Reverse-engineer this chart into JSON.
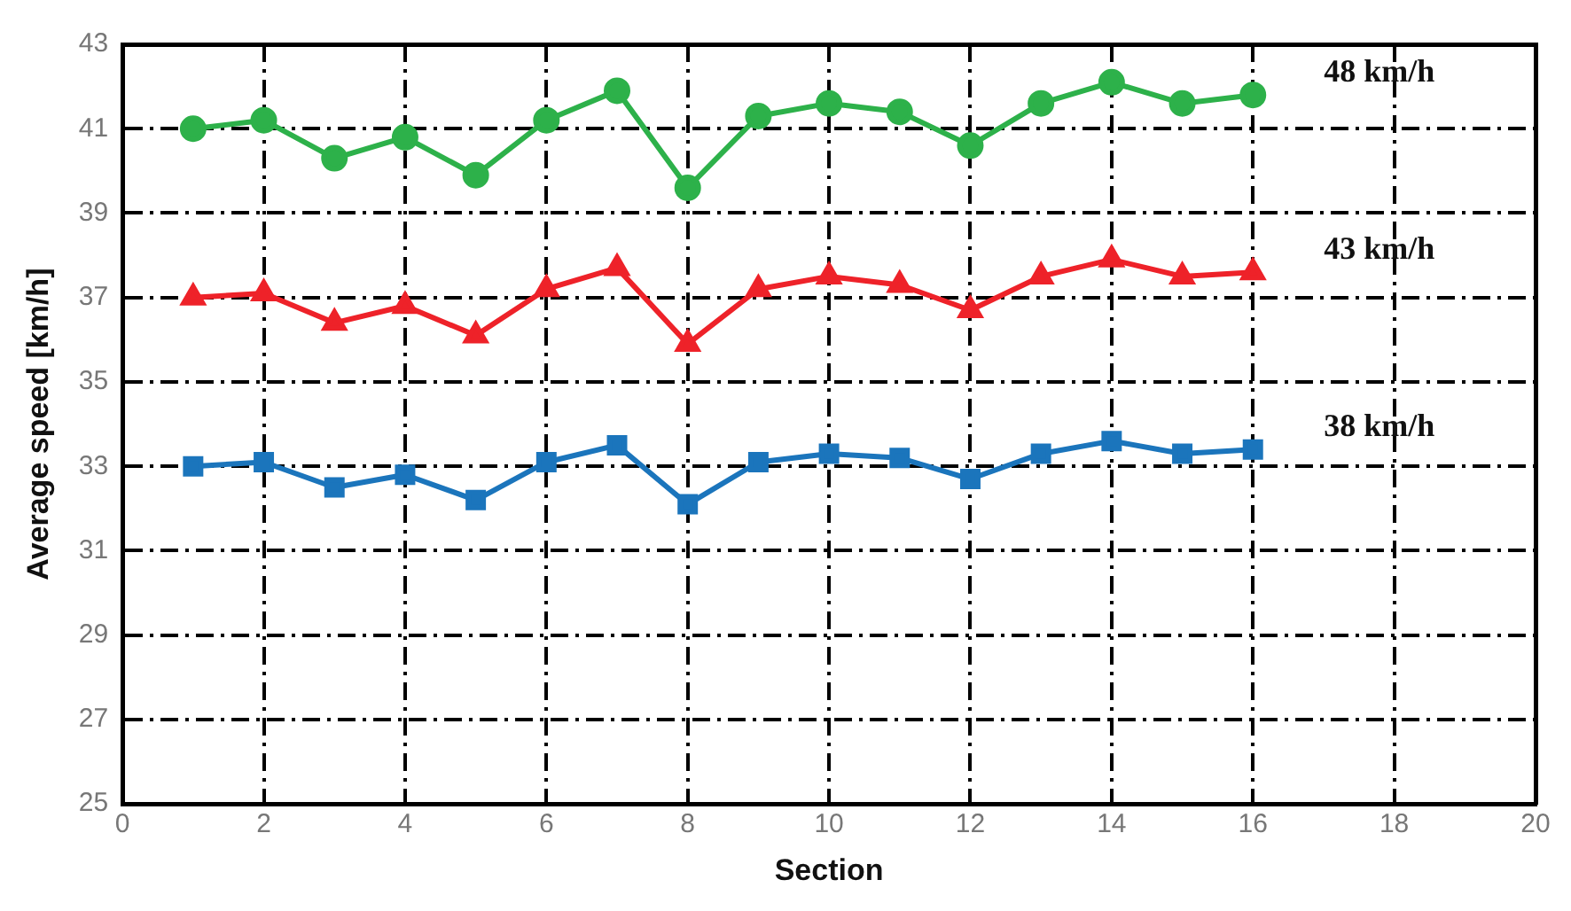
{
  "chart_data": {
    "type": "line",
    "xlabel": "Section",
    "ylabel": "Average speed [km/h]",
    "x": [
      1,
      2,
      3,
      4,
      5,
      6,
      7,
      8,
      9,
      10,
      11,
      12,
      13,
      14,
      15,
      16
    ],
    "xlim": [
      0,
      20
    ],
    "xticks": [
      0,
      2,
      4,
      6,
      8,
      10,
      12,
      14,
      16,
      18,
      20
    ],
    "ylim": [
      25,
      43
    ],
    "yticks": [
      25,
      27,
      29,
      31,
      33,
      35,
      37,
      39,
      41,
      43
    ],
    "grid": true,
    "legend": false,
    "line_style": "solid",
    "series": [
      {
        "name": "48 km/h",
        "color": "#2db14a",
        "marker": "circle",
        "values": [
          41.0,
          41.2,
          40.3,
          40.8,
          39.9,
          41.2,
          41.9,
          39.6,
          41.3,
          41.6,
          41.4,
          40.6,
          41.6,
          42.1,
          41.6,
          41.8
        ]
      },
      {
        "name": "43 km/h",
        "color": "#ee2229",
        "marker": "triangle",
        "values": [
          37.0,
          37.1,
          36.4,
          36.8,
          36.1,
          37.2,
          37.7,
          35.9,
          37.2,
          37.5,
          37.3,
          36.7,
          37.5,
          37.9,
          37.5,
          37.6
        ]
      },
      {
        "name": "38 km/h",
        "color": "#1b75bc",
        "marker": "square",
        "values": [
          33.0,
          33.1,
          32.5,
          32.8,
          32.2,
          33.1,
          33.5,
          32.1,
          33.1,
          33.3,
          33.2,
          32.7,
          33.3,
          33.6,
          33.3,
          33.4
        ]
      }
    ]
  }
}
